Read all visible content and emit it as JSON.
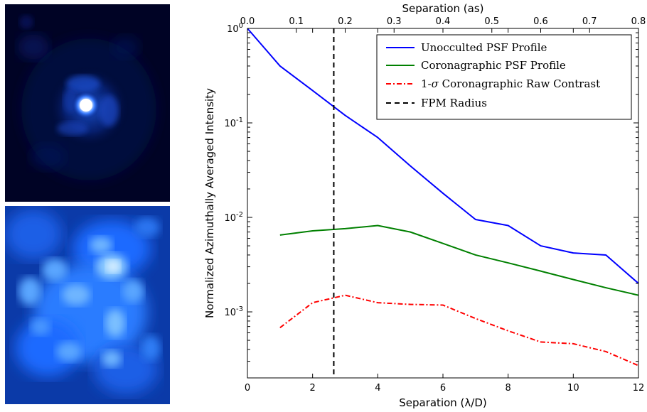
{
  "images": {
    "top": {
      "description_name": "unocculted-psf-image",
      "colors": [
        "#000428",
        "#0a1f7a",
        "#1e5be0",
        "#ffffff"
      ]
    },
    "bottom": {
      "description_name": "coronagraphic-psf-image",
      "colors": [
        "#0a2f9a",
        "#1f6bff",
        "#6fb6ff",
        "#d8f0ff"
      ]
    }
  },
  "chart_data": {
    "type": "line",
    "xlabel": "Separation (λ/D)",
    "x2label": "Separation (as)",
    "ylabel": "Normalized Azimuthally Averaged Intensity",
    "xlim": [
      0,
      12
    ],
    "x2lim": [
      0,
      0.8
    ],
    "ylim": [
      0.0002,
      1
    ],
    "yscale": "log",
    "xticks": [
      "0",
      "2",
      "4",
      "6",
      "8",
      "10",
      "12"
    ],
    "x2ticks": [
      "0.0",
      "0.1",
      "0.2",
      "0.3",
      "0.4",
      "0.5",
      "0.6",
      "0.7",
      "0.8"
    ],
    "yticks": [
      {
        "base": "10",
        "exp": "0",
        "value": 1
      },
      {
        "base": "10",
        "exp": "-1",
        "value": 0.1
      },
      {
        "base": "10",
        "exp": "-2",
        "value": 0.01
      },
      {
        "base": "10",
        "exp": "-3",
        "value": 0.001
      }
    ],
    "legend_position": "top-right",
    "series": [
      {
        "name": "Unocculted PSF Profile",
        "color": "#0000ff",
        "style": "solid",
        "x": [
          0,
          1,
          2,
          3,
          4,
          5,
          6,
          7,
          8,
          9,
          10,
          11,
          12
        ],
        "y": [
          1.0,
          0.4,
          0.22,
          0.12,
          0.07,
          0.035,
          0.018,
          0.0095,
          0.0082,
          0.005,
          0.0042,
          0.004,
          0.002
        ]
      },
      {
        "name": "Coronagraphic PSF Profile",
        "color": "#008000",
        "style": "solid",
        "x": [
          1,
          2,
          3,
          4,
          5,
          6,
          7,
          8,
          9,
          10,
          11,
          12
        ],
        "y": [
          0.0065,
          0.0072,
          0.0076,
          0.0082,
          0.007,
          0.0053,
          0.004,
          0.0033,
          0.0027,
          0.0022,
          0.0018,
          0.0015
        ]
      },
      {
        "name_prefix": "1-",
        "name_symbol": "σ",
        "name_suffix": " Coronagraphic Raw Contrast",
        "color": "#ff0000",
        "style": "dashdot",
        "x": [
          1,
          2,
          3,
          4,
          5,
          6,
          7,
          8,
          9,
          10,
          11,
          12
        ],
        "y": [
          0.00068,
          0.00125,
          0.0015,
          0.00125,
          0.0012,
          0.00118,
          0.00085,
          0.00063,
          0.00048,
          0.00046,
          0.00038,
          0.00027
        ]
      }
    ],
    "vlines": [
      {
        "name": "FPM Radius",
        "x": 2.65,
        "color": "#000000",
        "style": "dashed"
      }
    ]
  }
}
